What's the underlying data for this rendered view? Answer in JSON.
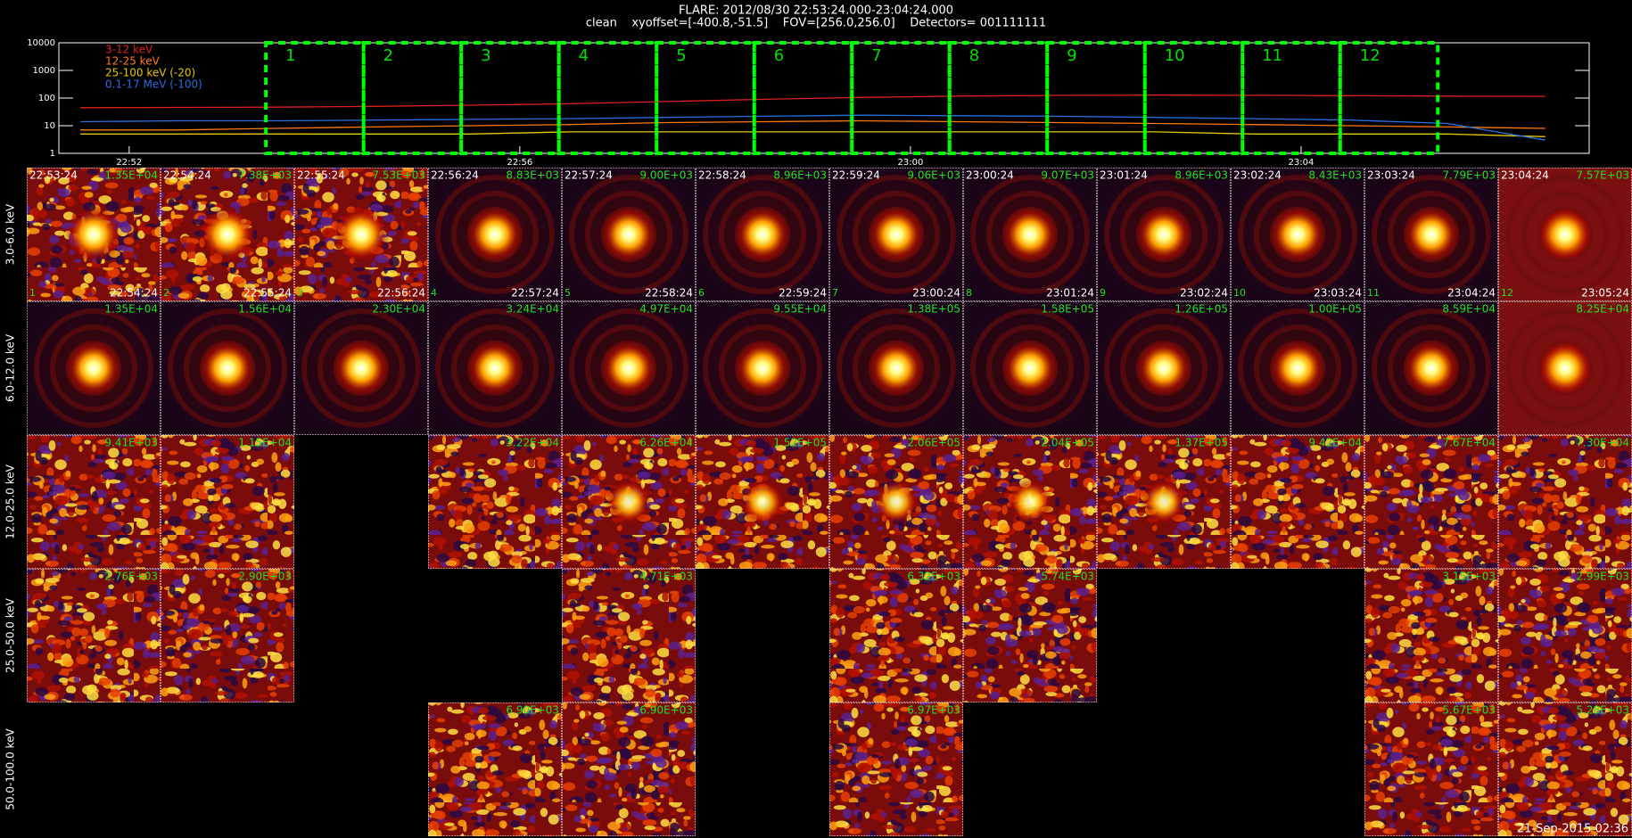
{
  "chart_data": {
    "type": "line",
    "title": "FLARE: 2012/08/30 22:53:24.000-23:04:24.000",
    "subtitle": "clean    xyoffset=[-400.8,-51.5]    FOV=[256.0,256.0]    Detectors= 001111111",
    "x": [
      51.5,
      52.5,
      53.5,
      54.5,
      55.5,
      56.5,
      57.5,
      58.5,
      59.5,
      60.5,
      61.5,
      62.5,
      63.5,
      64.5,
      65.5,
      66.5
    ],
    "xlim": [
      51.28,
      66.95
    ],
    "xticks": [
      {
        "value": 52,
        "label": "22:52"
      },
      {
        "value": 56,
        "label": "22:56"
      },
      {
        "value": 60,
        "label": "23:00"
      },
      {
        "value": 64,
        "label": "23:04"
      }
    ],
    "ylim": [
      1,
      10000
    ],
    "yticks": [
      10000,
      1000,
      100,
      10,
      1
    ],
    "ylog": true,
    "series": [
      {
        "name": "3-12 keV",
        "color": "#e02020",
        "values": [
          45,
          46,
          47,
          50,
          55,
          62,
          75,
          90,
          105,
          118,
          125,
          128,
          126,
          122,
          118,
          115
        ]
      },
      {
        "name": "12-25 keV",
        "color": "#ff7a10",
        "values": [
          7,
          7,
          8,
          9,
          10,
          11,
          13,
          14,
          15,
          14,
          13,
          12,
          11,
          10,
          9,
          8
        ]
      },
      {
        "name": "25-100 keV (-20)",
        "color": "#e8c800",
        "values": [
          5,
          5,
          5,
          5,
          5,
          6,
          6,
          6,
          6,
          6,
          6,
          6,
          5,
          5,
          5,
          4
        ]
      },
      {
        "name": "0.1-17 MeV (-100)",
        "color": "#2a6ee0",
        "values": [
          14,
          15,
          15,
          16,
          17,
          18,
          20,
          22,
          24,
          23,
          22,
          20,
          18,
          16,
          12,
          3
        ]
      }
    ],
    "intervals": [
      {
        "label": "1",
        "start": 53.4,
        "end": 54.4
      },
      {
        "label": "2",
        "start": 54.4,
        "end": 55.4
      },
      {
        "label": "3",
        "start": 55.4,
        "end": 56.4
      },
      {
        "label": "4",
        "start": 56.4,
        "end": 57.4
      },
      {
        "label": "5",
        "start": 57.4,
        "end": 58.4
      },
      {
        "label": "6",
        "start": 58.4,
        "end": 59.4
      },
      {
        "label": "7",
        "start": 59.4,
        "end": 60.4
      },
      {
        "label": "8",
        "start": 60.4,
        "end": 61.4
      },
      {
        "label": "9",
        "start": 61.4,
        "end": 62.4
      },
      {
        "label": "10",
        "start": 62.4,
        "end": 63.4
      },
      {
        "label": "11",
        "start": 63.4,
        "end": 64.4
      },
      {
        "label": "12",
        "start": 64.4,
        "end": 65.4
      }
    ]
  },
  "image_grid": {
    "bands": [
      "3.0-6.0 keV",
      "6.0-12.0 keV",
      "12.0-25.0 keV",
      "25.0-50.0 keV",
      "50.0-100.0 keV"
    ],
    "columns": [
      {
        "start": "22:53:24",
        "end": "22:54:24"
      },
      {
        "start": "22:54:24",
        "end": "22:55:24"
      },
      {
        "start": "22:55:24",
        "end": "22:56:24"
      },
      {
        "start": "22:56:24",
        "end": "22:57:24"
      },
      {
        "start": "22:57:24",
        "end": "22:58:24"
      },
      {
        "start": "22:58:24",
        "end": "22:59:24"
      },
      {
        "start": "22:59:24",
        "end": "23:00:24"
      },
      {
        "start": "23:00:24",
        "end": "23:01:24"
      },
      {
        "start": "23:01:24",
        "end": "23:02:24"
      },
      {
        "start": "23:02:24",
        "end": "23:03:24"
      },
      {
        "start": "23:03:24",
        "end": "23:04:24"
      },
      {
        "start": "23:04:24",
        "end": "23:05:24"
      }
    ],
    "cells": [
      [
        "1.35E+04",
        "7.38E+03",
        "7.53E+03",
        "8.83E+03",
        "9.00E+03",
        "8.96E+03",
        "9.06E+03",
        "9.07E+03",
        "8.96E+03",
        "8.43E+03",
        "7.79E+03",
        "7.57E+03"
      ],
      [
        "1.35E+04",
        "1.56E+04",
        "2.30E+04",
        "3.24E+04",
        "4.97E+04",
        "9.55E+04",
        "1.38E+05",
        "1.58E+05",
        "1.26E+05",
        "1.00E+05",
        "8.59E+04",
        "8.25E+04"
      ],
      [
        "9.41E+03",
        "1.15E+04",
        null,
        "3.22E+04",
        "6.26E+04",
        "1.52E+05",
        "2.06E+05",
        "2.04E+05",
        "1.37E+05",
        "9.42E+04",
        "7.67E+04",
        "7.30E+04"
      ],
      [
        "2.76E+03",
        "2.90E+03",
        null,
        null,
        "4.71E+03",
        null,
        "6.32E+03",
        "5.74E+03",
        null,
        null,
        "3.15E+03",
        "2.99E+03"
      ],
      [
        null,
        null,
        null,
        "6.90E+03",
        "6.90E+03",
        null,
        "6.97E+03",
        null,
        null,
        null,
        "5.67E+03",
        "5.28E+03"
      ]
    ]
  },
  "footer": "21-Sep-2015 02:36"
}
